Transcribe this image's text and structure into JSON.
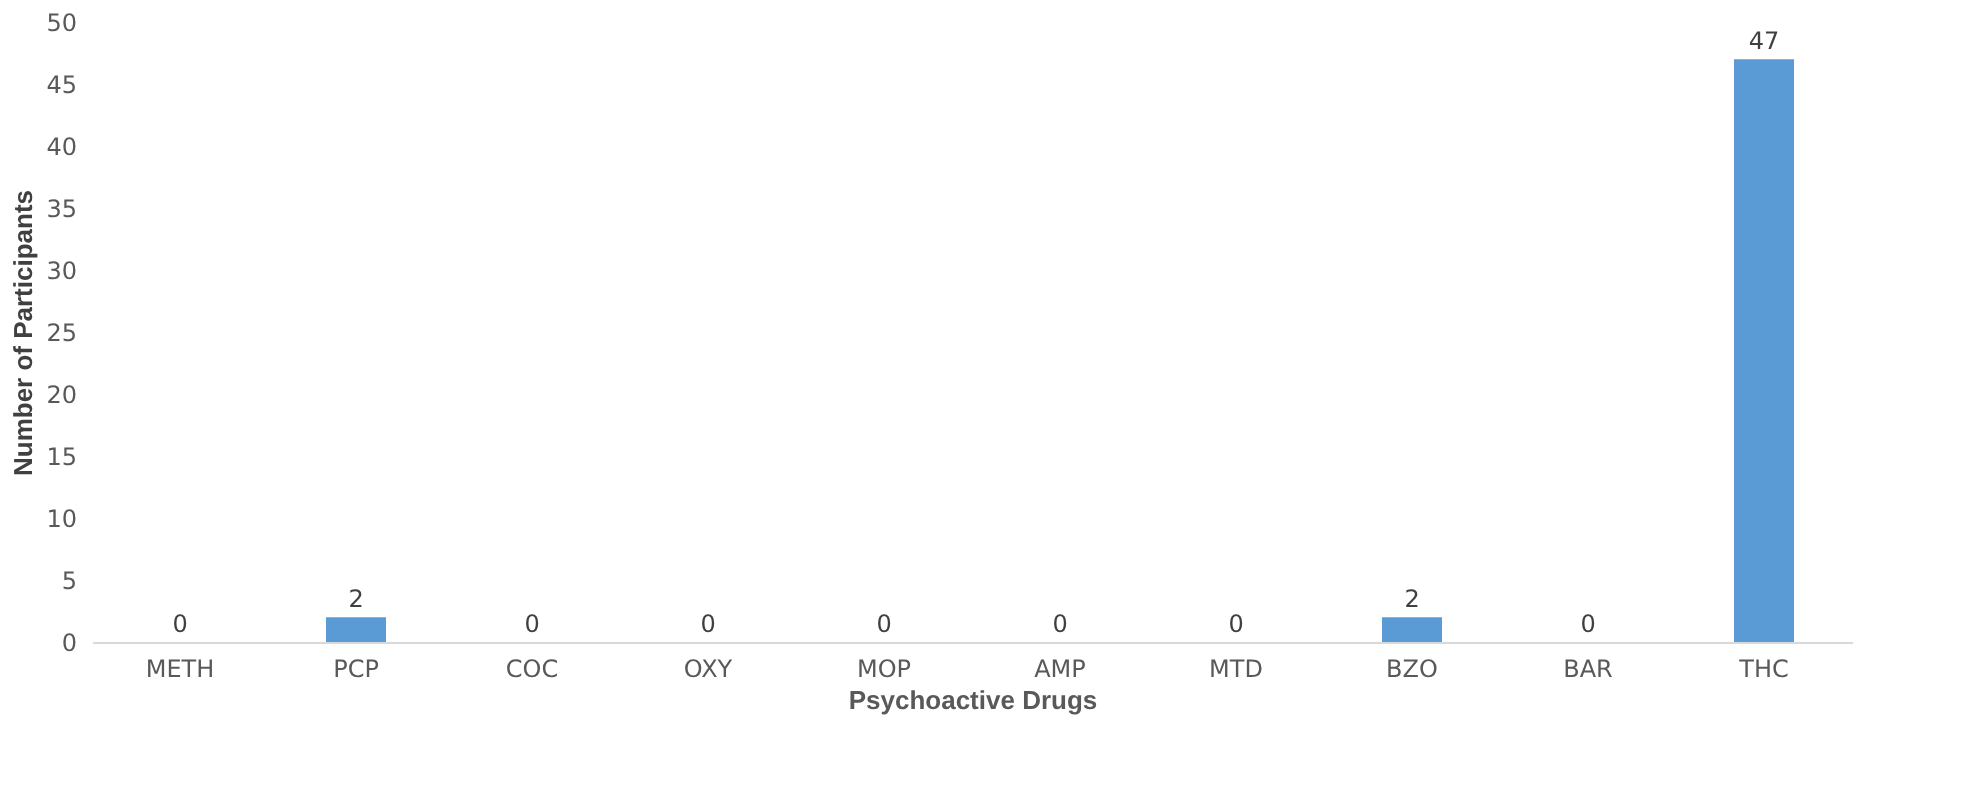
{
  "chart_data": {
    "type": "bar",
    "xlabel": "Psychoactive Drugs",
    "ylabel": "Number of Participants",
    "categories": [
      "METH",
      "PCP",
      "COC",
      "OXY",
      "MOP",
      "AMP",
      "MTD",
      "BZO",
      "BAR",
      "THC"
    ],
    "values": [
      0,
      2,
      0,
      0,
      0,
      0,
      0,
      2,
      0,
      47
    ],
    "color": "#5b9bd5",
    "ylim": [
      0,
      50
    ],
    "yticks": [
      0,
      5,
      10,
      15,
      20,
      25,
      30,
      35,
      40,
      45,
      50
    ],
    "grid": false,
    "data_labels": true
  }
}
